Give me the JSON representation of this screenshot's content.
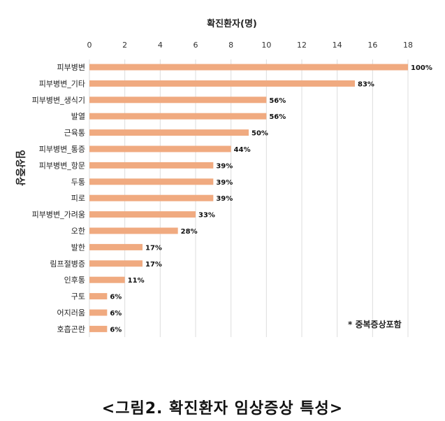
{
  "chart_data": {
    "type": "bar",
    "orientation": "horizontal",
    "title": "확진환자(명)",
    "ylabel": "임상증상",
    "xlim": [
      0,
      18
    ],
    "x_ticks": [
      "0",
      "2",
      "4",
      "6",
      "8",
      "10",
      "12",
      "14",
      "16",
      "18"
    ],
    "grid": true,
    "categories": [
      "피부병변",
      "피부병변_기타",
      "피부병변_생식기",
      "발열",
      "근육통",
      "피부병변_통증",
      "피부병변_항문",
      "두통",
      "피로",
      "피부병변_가려움",
      "오한",
      "발한",
      "림프절병증",
      "인후통",
      "구토",
      "어지러움",
      "호흡곤란"
    ],
    "values": [
      18,
      15,
      10,
      10,
      9,
      8,
      7,
      7,
      7,
      6,
      5,
      3,
      3,
      2,
      1,
      1,
      1
    ],
    "data_labels": [
      "100%",
      "83%",
      "56%",
      "56%",
      "50%",
      "44%",
      "39%",
      "39%",
      "39%",
      "33%",
      "28%",
      "17%",
      "17%",
      "11%",
      "6%",
      "6%",
      "6%"
    ],
    "note": "* 중복증상포함",
    "bar_color": "#F0AA80"
  },
  "caption": "<그림2. 확진환자 임상증상 특성>"
}
